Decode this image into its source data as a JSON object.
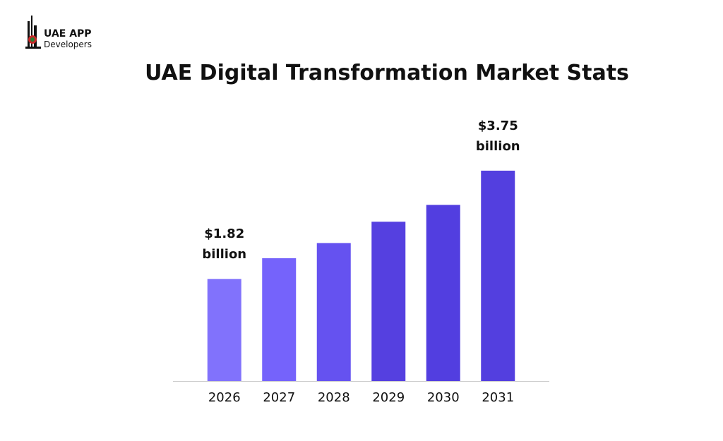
{
  "logo": {
    "line1": "UAE APP",
    "line2": "Developers"
  },
  "chart_data": {
    "type": "bar",
    "title": "UAE Digital Transformation Market Stats",
    "categories": [
      "2026",
      "2027",
      "2028",
      "2029",
      "2030",
      "2031"
    ],
    "values": [
      1.82,
      2.19,
      2.46,
      2.84,
      3.14,
      3.75
    ],
    "value_labels": [
      "$1.82 billion",
      null,
      null,
      null,
      null,
      "$3.75 billion"
    ],
    "colors": [
      "#8172fc",
      "#7563fb",
      "#6552f0",
      "#5540e0",
      "#523ee0",
      "#533fdf"
    ],
    "ylim": [
      0,
      4.1
    ]
  }
}
